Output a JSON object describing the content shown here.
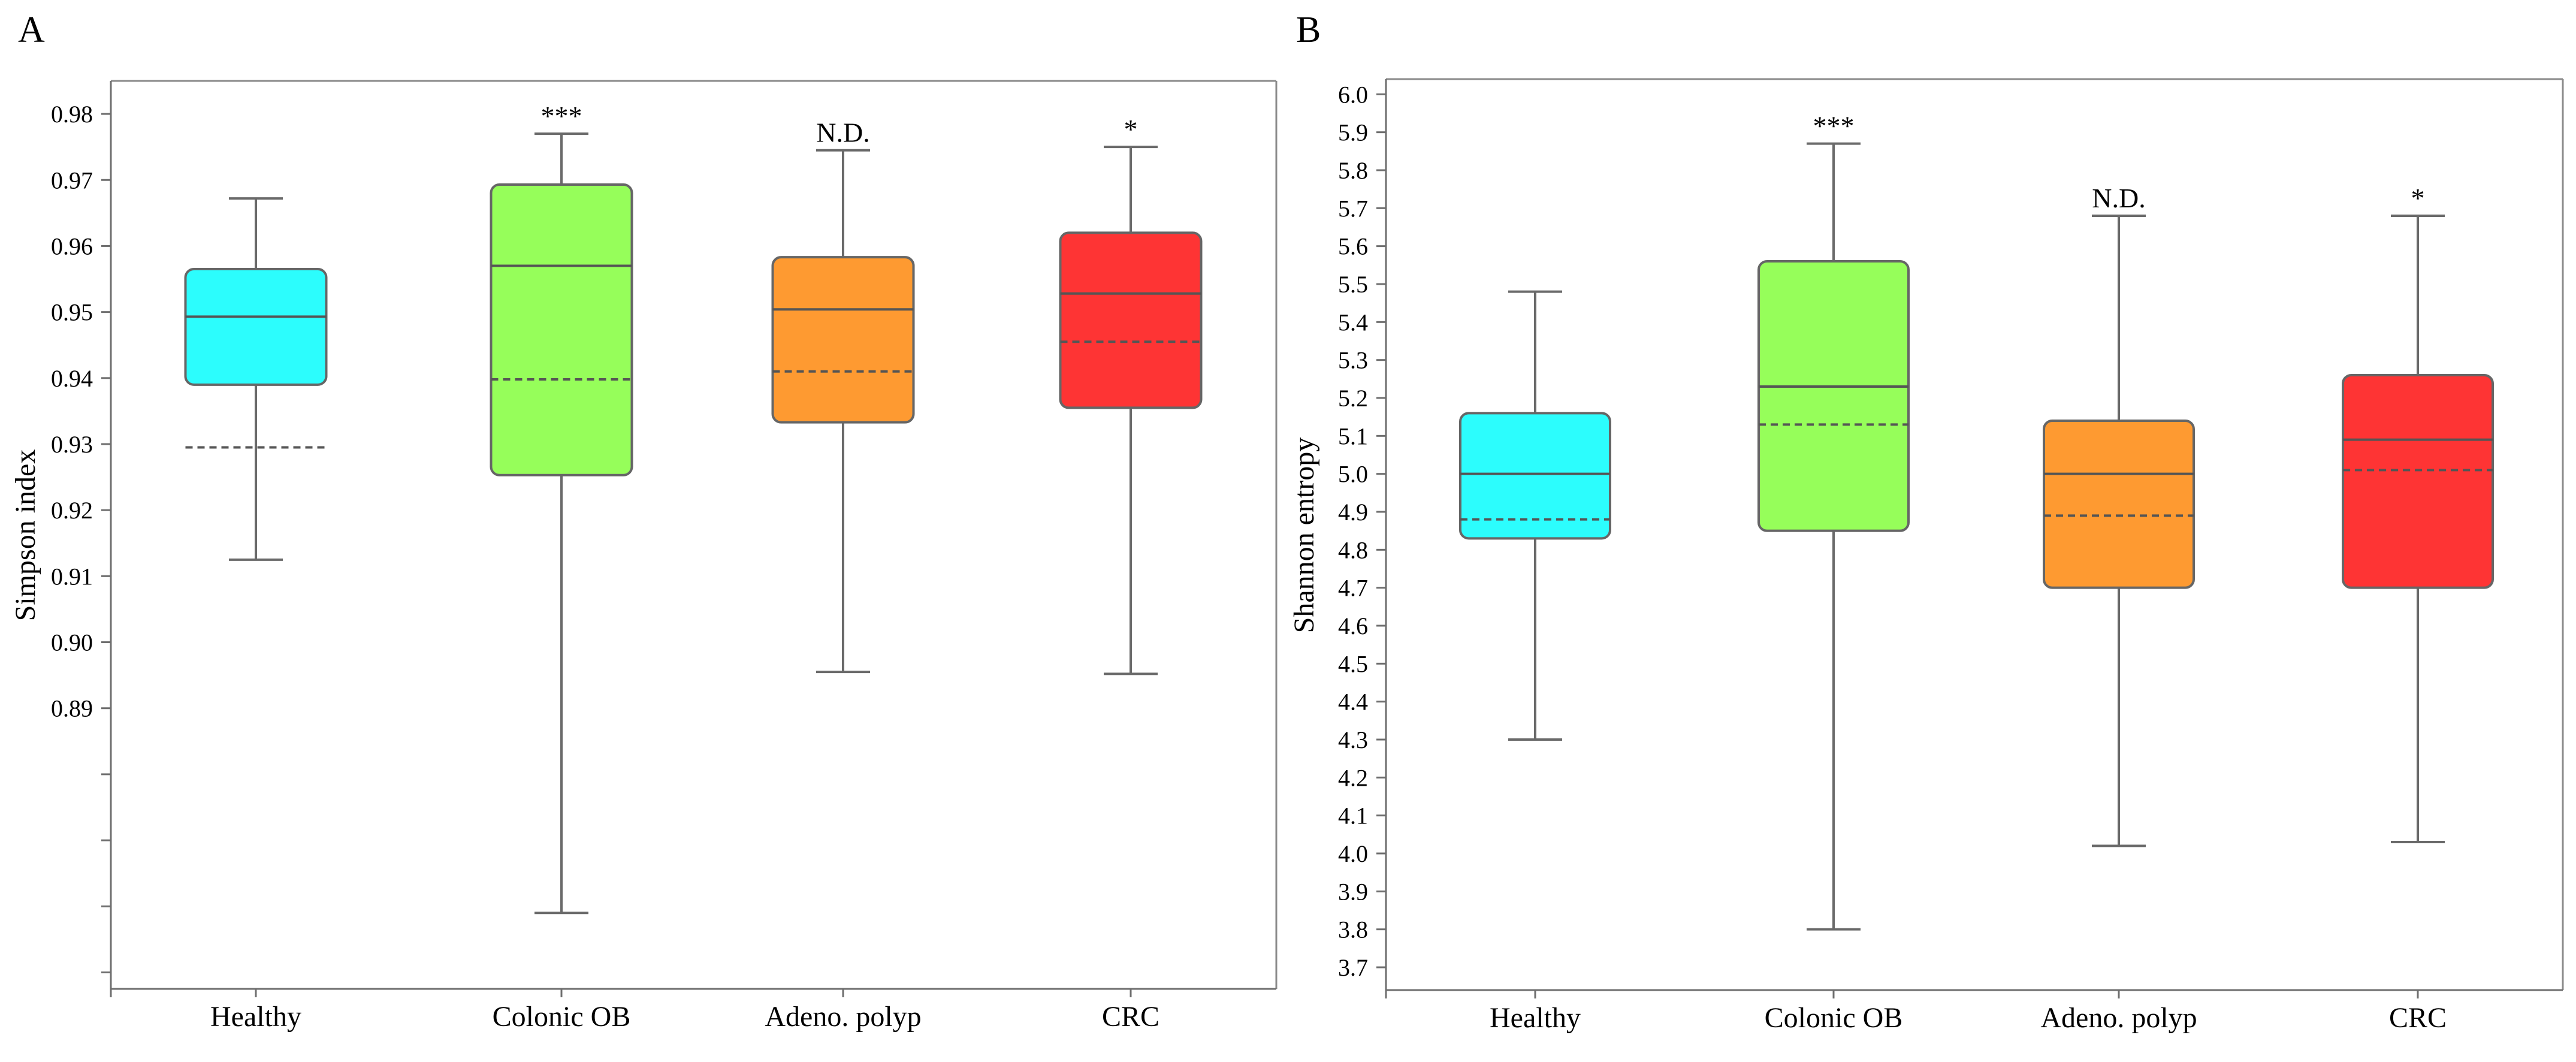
{
  "chart_data": [
    {
      "type": "boxplot",
      "panel_label": "A",
      "ylabel": "Simpson index",
      "ylim": [
        0.8475,
        0.985
      ],
      "yticks": [
        {
          "value": 0.98,
          "label": "0.98"
        },
        {
          "value": 0.97,
          "label": "0.97"
        },
        {
          "value": 0.96,
          "label": "0.96"
        },
        {
          "value": 0.95,
          "label": "0.95"
        },
        {
          "value": 0.94,
          "label": "0.94"
        },
        {
          "value": 0.93,
          "label": "0.93"
        },
        {
          "value": 0.92,
          "label": "0.92"
        },
        {
          "value": 0.91,
          "label": "0.91"
        },
        {
          "value": 0.9,
          "label": "0.90"
        },
        {
          "value": 0.89,
          "label": "0.89"
        },
        {
          "value": 0.88,
          "label": ""
        },
        {
          "value": 0.87,
          "label": ""
        },
        {
          "value": 0.86,
          "label": ""
        },
        {
          "value": 0.85,
          "label": ""
        }
      ],
      "categories": [
        "Healthy",
        "Colonic OB",
        "Adeno. polyp",
        "CRC"
      ],
      "boxes": [
        {
          "min": 0.9125,
          "q1": 0.939,
          "median": 0.9493,
          "q3": 0.9565,
          "max": 0.9672,
          "mean": 0.9295,
          "color": "#2cfdfd",
          "significance": ""
        },
        {
          "min": 0.859,
          "q1": 0.9253,
          "median": 0.957,
          "q3": 0.9693,
          "max": 0.977,
          "mean": 0.9398,
          "color": "#96fe5a",
          "significance": "***"
        },
        {
          "min": 0.8955,
          "q1": 0.9333,
          "median": 0.9504,
          "q3": 0.9583,
          "max": 0.9745,
          "mean": 0.941,
          "color": "#fe9a31",
          "significance": "N.D."
        },
        {
          "min": 0.8952,
          "q1": 0.9355,
          "median": 0.9528,
          "q3": 0.962,
          "max": 0.975,
          "mean": 0.9455,
          "color": "#fe3434",
          "significance": "*"
        }
      ]
    },
    {
      "type": "boxplot",
      "panel_label": "B",
      "ylabel": "Shannon entropy",
      "ylim": [
        3.64,
        6.04
      ],
      "yticks": [
        {
          "value": 6.0,
          "label": "6.0"
        },
        {
          "value": 5.9,
          "label": "5.9"
        },
        {
          "value": 5.8,
          "label": "5.8"
        },
        {
          "value": 5.7,
          "label": "5.7"
        },
        {
          "value": 5.6,
          "label": "5.6"
        },
        {
          "value": 5.5,
          "label": "5.5"
        },
        {
          "value": 5.4,
          "label": "5.4"
        },
        {
          "value": 5.3,
          "label": "5.3"
        },
        {
          "value": 5.2,
          "label": "5.2"
        },
        {
          "value": 5.1,
          "label": "5.1"
        },
        {
          "value": 5.0,
          "label": "5.0"
        },
        {
          "value": 4.9,
          "label": "4.9"
        },
        {
          "value": 4.8,
          "label": "4.8"
        },
        {
          "value": 4.7,
          "label": "4.7"
        },
        {
          "value": 4.6,
          "label": "4.6"
        },
        {
          "value": 4.5,
          "label": "4.5"
        },
        {
          "value": 4.4,
          "label": "4.4"
        },
        {
          "value": 4.3,
          "label": "4.3"
        },
        {
          "value": 4.2,
          "label": "4.2"
        },
        {
          "value": 4.1,
          "label": "4.1"
        },
        {
          "value": 4.0,
          "label": "4.0"
        },
        {
          "value": 3.9,
          "label": "3.9"
        },
        {
          "value": 3.8,
          "label": "3.8"
        },
        {
          "value": 3.7,
          "label": "3.7"
        }
      ],
      "categories": [
        "Healthy",
        "Colonic OB",
        "Adeno. polyp",
        "CRC"
      ],
      "boxes": [
        {
          "min": 4.3,
          "q1": 4.83,
          "median": 5.0,
          "q3": 5.16,
          "max": 5.48,
          "mean": 4.88,
          "color": "#2cfdfd",
          "significance": ""
        },
        {
          "min": 3.8,
          "q1": 4.85,
          "median": 5.23,
          "q3": 5.56,
          "max": 5.87,
          "mean": 5.13,
          "color": "#96fe5a",
          "significance": "***"
        },
        {
          "min": 4.02,
          "q1": 4.7,
          "median": 5.0,
          "q3": 5.14,
          "max": 5.68,
          "mean": 4.89,
          "color": "#fe9a31",
          "significance": "N.D."
        },
        {
          "min": 4.03,
          "q1": 4.7,
          "median": 5.09,
          "q3": 5.26,
          "max": 5.68,
          "mean": 5.01,
          "color": "#fe3434",
          "significance": "*"
        }
      ]
    }
  ]
}
